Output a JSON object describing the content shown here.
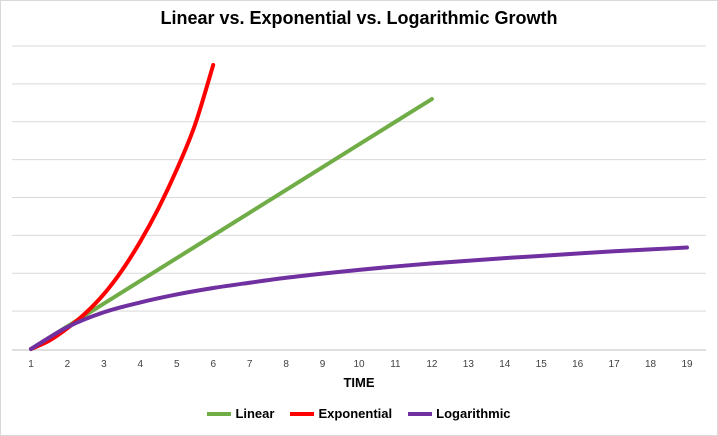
{
  "chart_data": {
    "type": "line",
    "title": "Linear vs. Exponential vs. Logarithmic Growth",
    "xlabel": "TIME",
    "ylabel": "",
    "x": [
      1,
      2,
      3,
      4,
      5,
      6,
      7,
      8,
      9,
      10,
      11,
      12,
      13,
      14,
      15,
      16,
      17,
      18,
      19
    ],
    "ylim": [
      0,
      8
    ],
    "grid": true,
    "legend": "bottom",
    "series": [
      {
        "name": "Linear",
        "color": "#70ad47",
        "x": [
          1,
          2,
          3,
          4,
          5,
          6,
          7,
          8,
          9,
          10,
          11,
          12
        ],
        "values": [
          0,
          0.6,
          1.2,
          1.8,
          2.4,
          3.0,
          3.6,
          4.2,
          4.8,
          5.4,
          6.0,
          6.6
        ]
      },
      {
        "name": "Exponential",
        "color": "#ff0000",
        "x": [
          1,
          1.5,
          2,
          2.5,
          3,
          3.5,
          4,
          4.5,
          5,
          5.5,
          6
        ],
        "values": [
          0,
          0.22,
          0.55,
          0.95,
          1.45,
          2.08,
          2.84,
          3.72,
          4.74,
          5.92,
          7.5
        ]
      },
      {
        "name": "Logarithmic",
        "color": "#7030a0",
        "x": [
          1,
          2,
          3,
          4,
          5,
          6,
          7,
          8,
          9,
          10,
          11,
          12,
          13,
          14,
          15,
          16,
          17,
          18,
          19
        ],
        "values": [
          0,
          0.58,
          0.97,
          1.23,
          1.44,
          1.61,
          1.75,
          1.88,
          1.99,
          2.09,
          2.18,
          2.26,
          2.33,
          2.4,
          2.46,
          2.52,
          2.58,
          2.63,
          2.68
        ]
      }
    ]
  }
}
